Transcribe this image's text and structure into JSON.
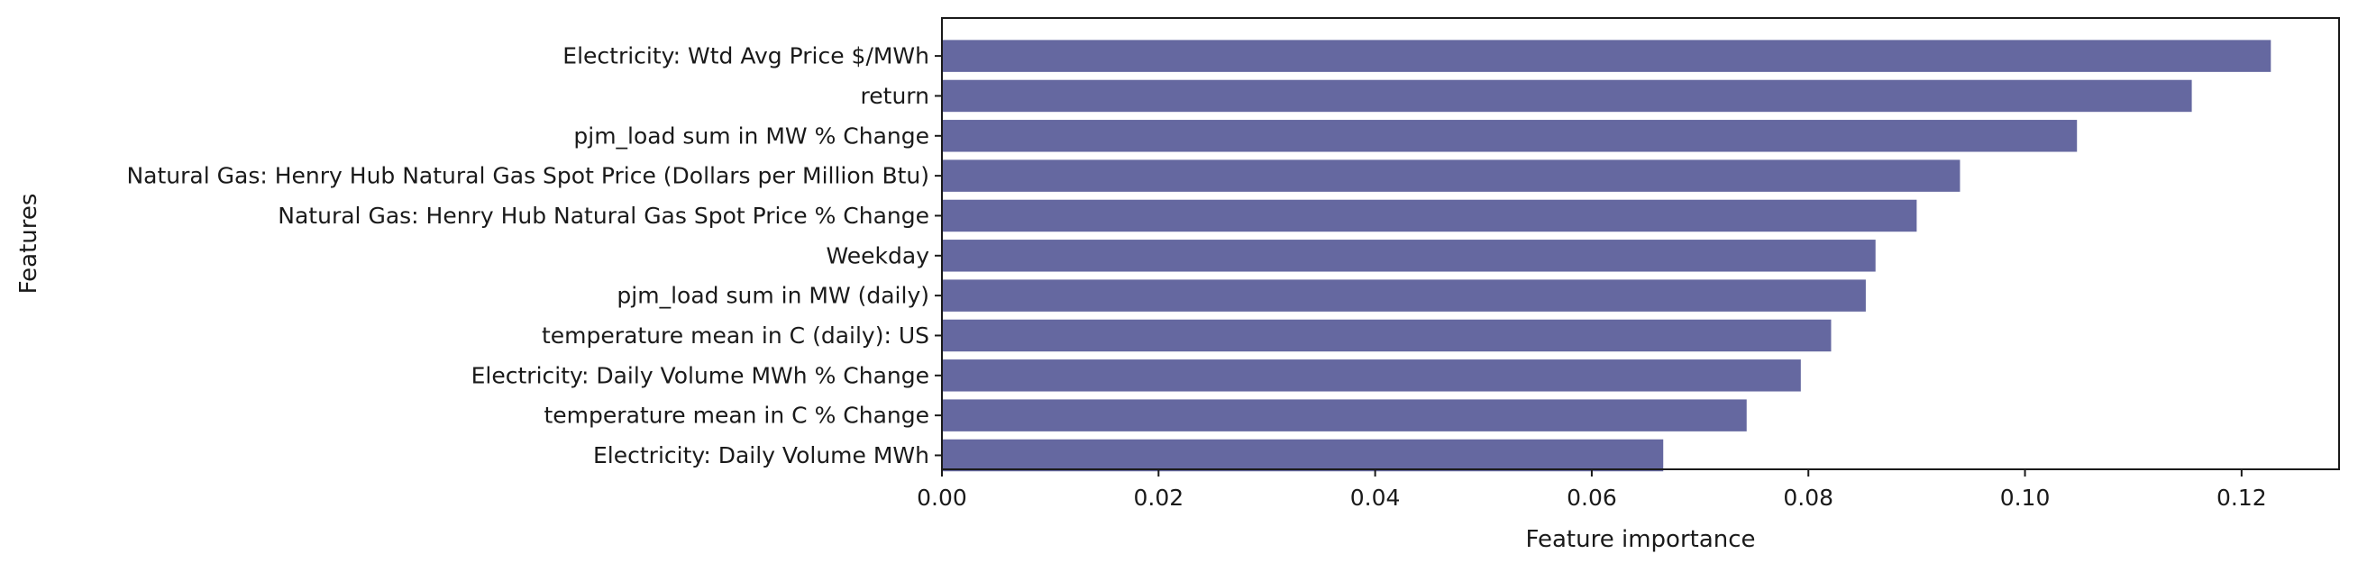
{
  "chart_data": {
    "type": "bar",
    "orientation": "horizontal",
    "xlabel": "Feature importance",
    "ylabel": "Features",
    "xlim": [
      0,
      0.129
    ],
    "xticks": [
      "0.00",
      "0.02",
      "0.04",
      "0.06",
      "0.08",
      "0.10",
      "0.12"
    ],
    "categories": [
      "Electricity: Wtd Avg Price $/MWh",
      "return",
      "pjm_load sum in MW % Change",
      "Natural Gas: Henry Hub Natural Gas Spot Price (Dollars per Million Btu)",
      "Natural Gas: Henry Hub Natural Gas Spot Price % Change",
      "Weekday",
      "pjm_load sum in MW (daily)",
      "temperature mean in C (daily): US",
      "Electricity: Daily Volume MWh % Change",
      "temperature mean in C % Change",
      "Electricity: Daily Volume MWh"
    ],
    "values": [
      0.1227,
      0.1154,
      0.1048,
      0.094,
      0.09,
      0.0862,
      0.0853,
      0.0821,
      0.0793,
      0.0743,
      0.0666
    ],
    "bar_color": "#6568a0",
    "grid": false
  }
}
